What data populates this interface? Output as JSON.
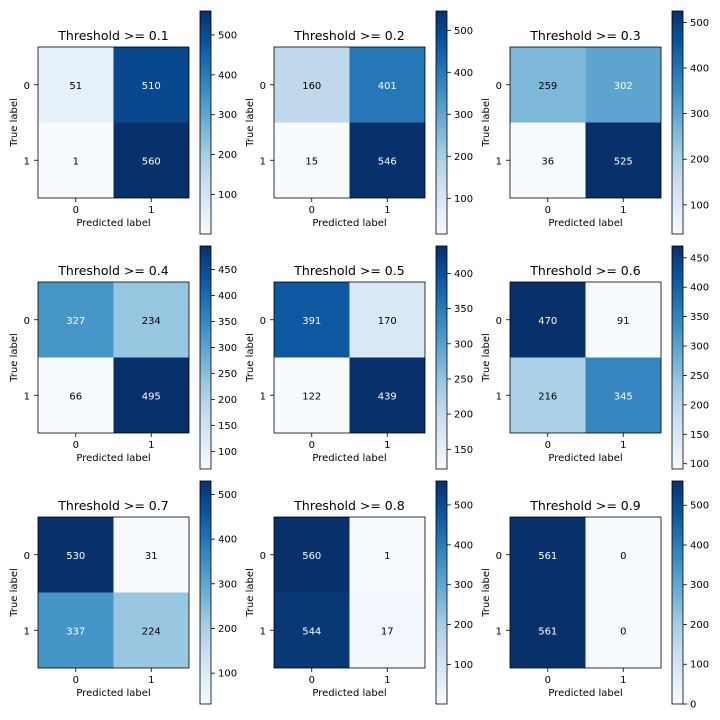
{
  "chart_data": [
    {
      "type": "heatmap",
      "title": "Threshold >= 0.1",
      "xlabel": "Predicted label",
      "ylabel": "True label",
      "x_ticks": [
        "0",
        "1"
      ],
      "y_ticks": [
        "0",
        "1"
      ],
      "values": [
        [
          51,
          510
        ],
        [
          1,
          560
        ]
      ],
      "colorbar_ticks": [
        100,
        200,
        300,
        400,
        500
      ],
      "colorbar_range": [
        1,
        560
      ],
      "colormap": "Blues"
    },
    {
      "type": "heatmap",
      "title": "Threshold >= 0.2",
      "xlabel": "Predicted label",
      "ylabel": "True label",
      "x_ticks": [
        "0",
        "1"
      ],
      "y_ticks": [
        "0",
        "1"
      ],
      "values": [
        [
          160,
          401
        ],
        [
          15,
          546
        ]
      ],
      "colorbar_ticks": [
        100,
        200,
        300,
        400,
        500
      ],
      "colorbar_range": [
        15,
        546
      ],
      "colormap": "Blues"
    },
    {
      "type": "heatmap",
      "title": "Threshold >= 0.3",
      "xlabel": "Predicted label",
      "ylabel": "True label",
      "x_ticks": [
        "0",
        "1"
      ],
      "y_ticks": [
        "0",
        "1"
      ],
      "values": [
        [
          259,
          302
        ],
        [
          36,
          525
        ]
      ],
      "colorbar_ticks": [
        100,
        200,
        300,
        400,
        500
      ],
      "colorbar_range": [
        36,
        525
      ],
      "colormap": "Blues"
    },
    {
      "type": "heatmap",
      "title": "Threshold >= 0.4",
      "xlabel": "Predicted label",
      "ylabel": "True label",
      "x_ticks": [
        "0",
        "1"
      ],
      "y_ticks": [
        "0",
        "1"
      ],
      "values": [
        [
          327,
          234
        ],
        [
          66,
          495
        ]
      ],
      "colorbar_ticks": [
        100,
        150,
        200,
        250,
        300,
        350,
        400,
        450
      ],
      "colorbar_range": [
        66,
        495
      ],
      "colormap": "Blues"
    },
    {
      "type": "heatmap",
      "title": "Threshold >= 0.5",
      "xlabel": "Predicted label",
      "ylabel": "True label",
      "x_ticks": [
        "0",
        "1"
      ],
      "y_ticks": [
        "0",
        "1"
      ],
      "values": [
        [
          391,
          170
        ],
        [
          122,
          439
        ]
      ],
      "colorbar_ticks": [
        150,
        200,
        250,
        300,
        350,
        400
      ],
      "colorbar_range": [
        122,
        439
      ],
      "colormap": "Blues"
    },
    {
      "type": "heatmap",
      "title": "Threshold >= 0.6",
      "xlabel": "Predicted label",
      "ylabel": "True label",
      "x_ticks": [
        "0",
        "1"
      ],
      "y_ticks": [
        "0",
        "1"
      ],
      "values": [
        [
          470,
          91
        ],
        [
          216,
          345
        ]
      ],
      "colorbar_ticks": [
        100,
        150,
        200,
        250,
        300,
        350,
        400,
        450
      ],
      "colorbar_range": [
        91,
        470
      ],
      "colormap": "Blues"
    },
    {
      "type": "heatmap",
      "title": "Threshold >= 0.7",
      "xlabel": "Predicted label",
      "ylabel": "True label",
      "x_ticks": [
        "0",
        "1"
      ],
      "y_ticks": [
        "0",
        "1"
      ],
      "values": [
        [
          530,
          31
        ],
        [
          337,
          224
        ]
      ],
      "colorbar_ticks": [
        100,
        200,
        300,
        400,
        500
      ],
      "colorbar_range": [
        31,
        530
      ],
      "colormap": "Blues"
    },
    {
      "type": "heatmap",
      "title": "Threshold >= 0.8",
      "xlabel": "Predicted label",
      "ylabel": "True label",
      "x_ticks": [
        "0",
        "1"
      ],
      "y_ticks": [
        "0",
        "1"
      ],
      "values": [
        [
          560,
          1
        ],
        [
          544,
          17
        ]
      ],
      "colorbar_ticks": [
        100,
        200,
        300,
        400,
        500
      ],
      "colorbar_range": [
        1,
        560
      ],
      "colormap": "Blues"
    },
    {
      "type": "heatmap",
      "title": "Threshold >= 0.9",
      "xlabel": "Predicted label",
      "ylabel": "True label",
      "x_ticks": [
        "0",
        "1"
      ],
      "y_ticks": [
        "0",
        "1"
      ],
      "values": [
        [
          561,
          0
        ],
        [
          561,
          0
        ]
      ],
      "colorbar_ticks": [
        0,
        100,
        200,
        300,
        400,
        500
      ],
      "colorbar_range": [
        0,
        561
      ],
      "colormap": "Blues"
    }
  ]
}
